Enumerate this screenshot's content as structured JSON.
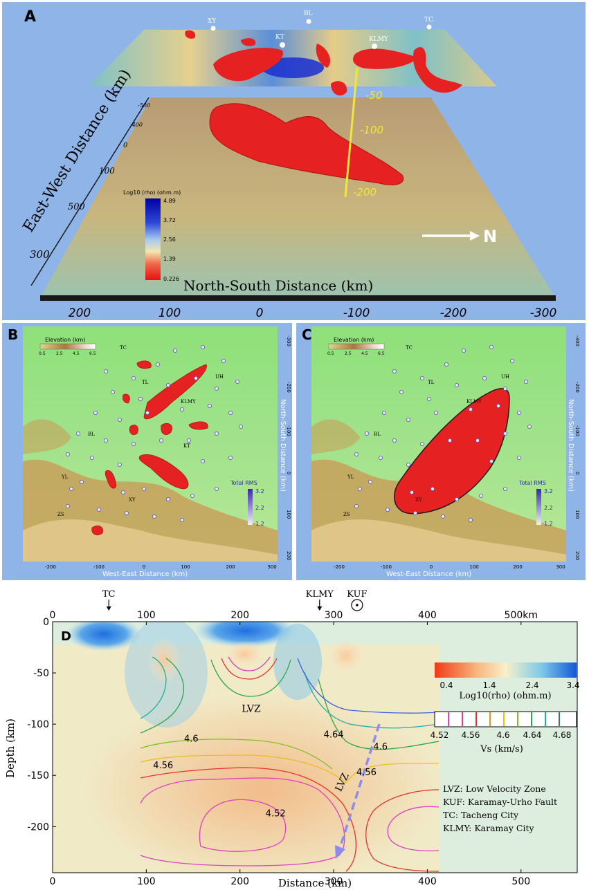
{
  "panelA": {
    "letter": "A",
    "cities": [
      {
        "name": "XY"
      },
      {
        "name": "BL"
      },
      {
        "name": "TC"
      },
      {
        "name": "KT"
      },
      {
        "name": "KLMY"
      }
    ],
    "depth_labels": [
      "-50",
      "-100",
      "-200"
    ],
    "north_label": "N",
    "ew_axis_label": "East-West Distance (km)",
    "ew_ticks": [
      "-500",
      "-400",
      "0",
      "100",
      "500",
      "300"
    ],
    "ns_axis_label": "North-South Distance (km)",
    "ns_ticks": [
      "200",
      "100",
      "0",
      "-100",
      "-200",
      "-300"
    ],
    "colorbar": {
      "title": "Log10 (rho) (ohm.m)",
      "ticks": [
        "4.89",
        "3.72",
        "2.56",
        "1.39",
        "0.226"
      ]
    }
  },
  "panelB": {
    "letter": "B",
    "elevation_title": "Elevation (km)",
    "elevation_ticks": [
      "0.5",
      "2.5",
      "4.5",
      "6.5"
    ],
    "cities": [
      {
        "name": "TC"
      },
      {
        "name": "TL"
      },
      {
        "name": "UH"
      },
      {
        "name": "KLMY"
      },
      {
        "name": "BL"
      },
      {
        "name": "KT"
      },
      {
        "name": "YL"
      },
      {
        "name": "XY"
      },
      {
        "name": "ZS"
      }
    ],
    "rms_title": "Total RMS",
    "rms_ticks": [
      "3.2",
      "2.2",
      "1.2"
    ],
    "x_axis_label": "West-East Distance (km)",
    "x_ticks": [
      "-200",
      "-100",
      "0",
      "100",
      "200",
      "300"
    ],
    "y_axis_label": "North-South Distance (km)",
    "y_ticks": [
      "-300",
      "-200",
      "-100",
      "0",
      "100",
      "200"
    ]
  },
  "panelC": {
    "letter": "C",
    "elevation_title": "Elevation (km)",
    "elevation_ticks": [
      "0.5",
      "2.5",
      "4.5",
      "6.5"
    ],
    "cities": [
      {
        "name": "TC"
      },
      {
        "name": "TL"
      },
      {
        "name": "UH"
      },
      {
        "name": "KLMY"
      },
      {
        "name": "BL"
      },
      {
        "name": "YL"
      },
      {
        "name": "XY"
      },
      {
        "name": "ZS"
      }
    ],
    "rms_title": "Total RMS",
    "rms_ticks": [
      "3.2",
      "2.2",
      "1.2"
    ],
    "x_axis_label": "West-East Distance (km)",
    "x_ticks": [
      "-200",
      "-100",
      "0",
      "100",
      "200",
      "300"
    ],
    "y_axis_label": "North-South Distance (km)",
    "y_ticks": [
      "-300",
      "-200",
      "-100",
      "0",
      "100",
      "200"
    ]
  },
  "panelD": {
    "letter": "D",
    "top_axis_ticks": [
      "0",
      "100",
      "200",
      "300",
      "400",
      "500km"
    ],
    "markers": [
      {
        "name": "TC",
        "x": 60,
        "symbol": "arrow"
      },
      {
        "name": "KLMY",
        "x": 285,
        "symbol": "arrow"
      },
      {
        "name": "KUF",
        "x": 325,
        "symbol": "circle-dot"
      }
    ],
    "xlabel": "Distance (km)",
    "ylabel": "Depth (km)",
    "x_ticks": [
      "0",
      "100",
      "200",
      "300",
      "400",
      "500"
    ],
    "y_ticks": [
      "0",
      "-50",
      "-100",
      "-150",
      "-200"
    ],
    "xlim": [
      0,
      560
    ],
    "ylim": [
      -245,
      0
    ],
    "rho_colorbar": {
      "label": "Log10(rho) (ohm.m)",
      "ticks": [
        "0.4",
        "1.4",
        "2.4",
        "3.4"
      ]
    },
    "vs_colorbar": {
      "label": "Vs (km/s)",
      "ticks": [
        "4.52",
        "4.56",
        "4.6",
        "4.64",
        "4.68"
      ]
    },
    "contour_labels": [
      {
        "text": "4.6",
        "x": 148,
        "y": -117
      },
      {
        "text": "4.56",
        "x": 118,
        "y": -143
      },
      {
        "text": "4.52",
        "x": 238,
        "y": -190
      },
      {
        "text": "4.64",
        "x": 300,
        "y": -113
      },
      {
        "text": "4.6",
        "x": 350,
        "y": -125
      },
      {
        "text": "4.56",
        "x": 335,
        "y": -150
      }
    ],
    "lvz_labels": [
      {
        "text": "LVZ",
        "x": 212,
        "y": -88
      },
      {
        "text": "LVZ",
        "x": 312,
        "y": -158
      }
    ],
    "legend": [
      "LVZ: Low Velocity Zone",
      "KUF: Karamay-Urho Fault",
      "TC: Tacheng City",
      "KLMY: Karamay City"
    ]
  },
  "colors": {
    "panel_bg": "#8eb4e8",
    "anomaly_red": "#e52121",
    "yellow_line": "#f0e63c",
    "lvz_arrow": "#8c8cf0"
  }
}
